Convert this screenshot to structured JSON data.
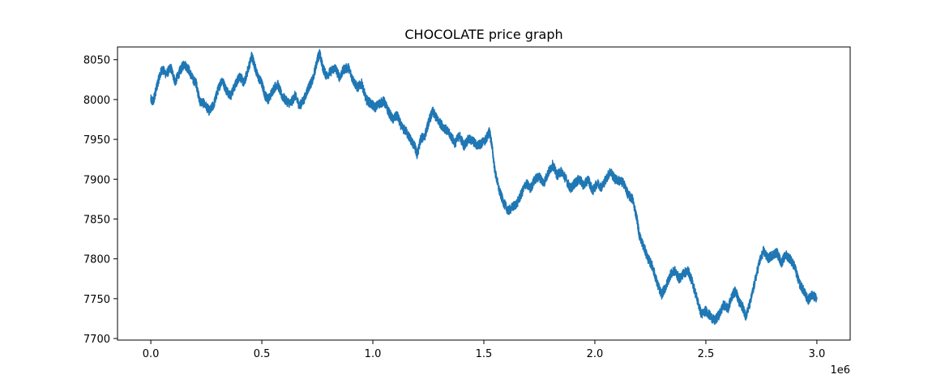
{
  "chart_data": {
    "type": "line",
    "title": "CHOCOLATE price graph",
    "xlabel": "",
    "ylabel": "",
    "x_multiplier_label": "1e6",
    "xlim": [
      -150000,
      3150000
    ],
    "ylim": [
      7698,
      8066
    ],
    "x_ticks": [
      0,
      0.5,
      1.0,
      1.5,
      2.0,
      2.5,
      3.0
    ],
    "x_tick_labels": [
      "0.0",
      "0.5",
      "1.0",
      "1.5",
      "2.0",
      "2.5",
      "3.0"
    ],
    "y_ticks": [
      7700,
      7750,
      7800,
      7850,
      7900,
      7950,
      8000,
      8050
    ],
    "y_tick_labels": [
      "7700",
      "7750",
      "7800",
      "7850",
      "7900",
      "7950",
      "8000",
      "8050"
    ],
    "grid": false,
    "series": [
      {
        "color": "#1f77b4",
        "noise": 6,
        "points": [
          [
            0,
            8000
          ],
          [
            10000,
            7997
          ],
          [
            20000,
            8008
          ],
          [
            35000,
            8025
          ],
          [
            50000,
            8038
          ],
          [
            70000,
            8032
          ],
          [
            90000,
            8040
          ],
          [
            110000,
            8022
          ],
          [
            130000,
            8035
          ],
          [
            150000,
            8045
          ],
          [
            170000,
            8038
          ],
          [
            190000,
            8025
          ],
          [
            205000,
            8020
          ],
          [
            220000,
            7998
          ],
          [
            240000,
            7995
          ],
          [
            265000,
            7985
          ],
          [
            285000,
            7995
          ],
          [
            300000,
            8010
          ],
          [
            320000,
            8025
          ],
          [
            340000,
            8012
          ],
          [
            360000,
            8005
          ],
          [
            380000,
            8018
          ],
          [
            400000,
            8030
          ],
          [
            420000,
            8020
          ],
          [
            440000,
            8040
          ],
          [
            455000,
            8055
          ],
          [
            465000,
            8045
          ],
          [
            480000,
            8030
          ],
          [
            500000,
            8020
          ],
          [
            515000,
            8005
          ],
          [
            530000,
            8000
          ],
          [
            550000,
            8012
          ],
          [
            570000,
            8020
          ],
          [
            590000,
            8005
          ],
          [
            610000,
            7998
          ],
          [
            630000,
            7995
          ],
          [
            650000,
            8005
          ],
          [
            670000,
            7992
          ],
          [
            690000,
            8000
          ],
          [
            710000,
            8015
          ],
          [
            730000,
            8025
          ],
          [
            750000,
            8050
          ],
          [
            760000,
            8058
          ],
          [
            775000,
            8040
          ],
          [
            790000,
            8030
          ],
          [
            810000,
            8035
          ],
          [
            830000,
            8040
          ],
          [
            850000,
            8028
          ],
          [
            870000,
            8038
          ],
          [
            890000,
            8040
          ],
          [
            910000,
            8025
          ],
          [
            930000,
            8015
          ],
          [
            950000,
            8020
          ],
          [
            970000,
            8000
          ],
          [
            990000,
            7995
          ],
          [
            1010000,
            7990
          ],
          [
            1030000,
            7995
          ],
          [
            1050000,
            7998
          ],
          [
            1070000,
            7985
          ],
          [
            1090000,
            7975
          ],
          [
            1110000,
            7980
          ],
          [
            1130000,
            7965
          ],
          [
            1150000,
            7960
          ],
          [
            1170000,
            7950
          ],
          [
            1190000,
            7940
          ],
          [
            1200000,
            7930
          ],
          [
            1215000,
            7950
          ],
          [
            1235000,
            7955
          ],
          [
            1255000,
            7975
          ],
          [
            1270000,
            7985
          ],
          [
            1290000,
            7975
          ],
          [
            1310000,
            7968
          ],
          [
            1330000,
            7962
          ],
          [
            1350000,
            7955
          ],
          [
            1370000,
            7945
          ],
          [
            1390000,
            7955
          ],
          [
            1410000,
            7942
          ],
          [
            1430000,
            7950
          ],
          [
            1450000,
            7948
          ],
          [
            1470000,
            7942
          ],
          [
            1490000,
            7945
          ],
          [
            1510000,
            7950
          ],
          [
            1525000,
            7960
          ],
          [
            1535000,
            7945
          ],
          [
            1550000,
            7910
          ],
          [
            1570000,
            7885
          ],
          [
            1590000,
            7870
          ],
          [
            1610000,
            7860
          ],
          [
            1630000,
            7865
          ],
          [
            1650000,
            7870
          ],
          [
            1670000,
            7882
          ],
          [
            1690000,
            7895
          ],
          [
            1710000,
            7888
          ],
          [
            1730000,
            7900
          ],
          [
            1750000,
            7903
          ],
          [
            1770000,
            7895
          ],
          [
            1790000,
            7908
          ],
          [
            1810000,
            7918
          ],
          [
            1830000,
            7905
          ],
          [
            1850000,
            7910
          ],
          [
            1870000,
            7900
          ],
          [
            1890000,
            7888
          ],
          [
            1910000,
            7895
          ],
          [
            1930000,
            7900
          ],
          [
            1950000,
            7892
          ],
          [
            1970000,
            7900
          ],
          [
            1990000,
            7885
          ],
          [
            2010000,
            7895
          ],
          [
            2030000,
            7890
          ],
          [
            2050000,
            7900
          ],
          [
            2070000,
            7910
          ],
          [
            2090000,
            7900
          ],
          [
            2110000,
            7898
          ],
          [
            2130000,
            7895
          ],
          [
            2150000,
            7880
          ],
          [
            2170000,
            7875
          ],
          [
            2190000,
            7850
          ],
          [
            2200000,
            7830
          ],
          [
            2220000,
            7815
          ],
          [
            2240000,
            7800
          ],
          [
            2260000,
            7790
          ],
          [
            2280000,
            7770
          ],
          [
            2300000,
            7755
          ],
          [
            2320000,
            7765
          ],
          [
            2340000,
            7780
          ],
          [
            2360000,
            7785
          ],
          [
            2380000,
            7775
          ],
          [
            2400000,
            7782
          ],
          [
            2420000,
            7785
          ],
          [
            2440000,
            7770
          ],
          [
            2460000,
            7750
          ],
          [
            2480000,
            7730
          ],
          [
            2500000,
            7735
          ],
          [
            2520000,
            7728
          ],
          [
            2540000,
            7722
          ],
          [
            2560000,
            7730
          ],
          [
            2580000,
            7742
          ],
          [
            2600000,
            7738
          ],
          [
            2620000,
            7755
          ],
          [
            2635000,
            7760
          ],
          [
            2650000,
            7745
          ],
          [
            2665000,
            7740
          ],
          [
            2680000,
            7728
          ],
          [
            2700000,
            7745
          ],
          [
            2720000,
            7770
          ],
          [
            2740000,
            7795
          ],
          [
            2760000,
            7810
          ],
          [
            2780000,
            7800
          ],
          [
            2800000,
            7805
          ],
          [
            2820000,
            7808
          ],
          [
            2840000,
            7795
          ],
          [
            2860000,
            7805
          ],
          [
            2880000,
            7800
          ],
          [
            2900000,
            7790
          ],
          [
            2920000,
            7770
          ],
          [
            2940000,
            7760
          ],
          [
            2960000,
            7748
          ],
          [
            2980000,
            7755
          ],
          [
            3000000,
            7750
          ]
        ]
      }
    ]
  }
}
